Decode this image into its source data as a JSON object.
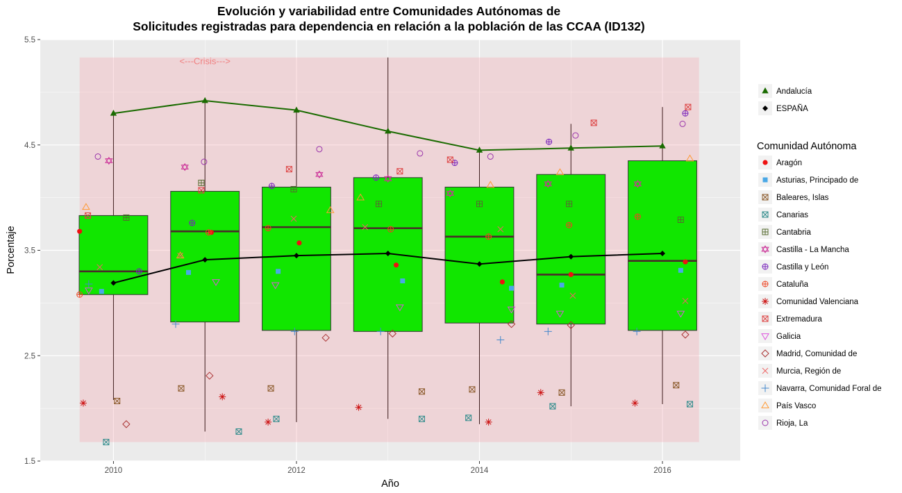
{
  "chart_data": {
    "type": "boxplot",
    "title_line1": "Evolución y variabilidad entre Comunidades Autónomas de",
    "title_line2": "Solicitudes registradas para dependencia en relación a la población de las CCAA (ID132)",
    "xlabel": "Año",
    "ylabel": "Porcentaje",
    "xlim": [
      2009.2,
      2016.85
    ],
    "ylim": [
      1.5,
      5.5
    ],
    "x_ticks": [
      2010,
      2012,
      2014,
      2016
    ],
    "x_tick_labels": [
      "2010",
      "2012",
      "2014",
      "2016"
    ],
    "y_ticks": [
      1.5,
      2.5,
      3.5,
      4.5,
      5.5
    ],
    "y_tick_labels": [
      "1.5",
      "2.5",
      "3.5",
      "4.5",
      "5.5"
    ],
    "annotation": {
      "text": "<---Crisis--->",
      "x": 2011,
      "y": 5.3
    },
    "crisis_band": {
      "x0": 2009.63,
      "x1": 2016.4,
      "y0": 1.68,
      "y1": 5.33,
      "color": "#f4a0a8"
    },
    "boxes": [
      {
        "x": 2010,
        "q1": 3.08,
        "median": 3.3,
        "q3": 3.83,
        "lower": 2.08,
        "upper": 4.8
      },
      {
        "x": 2011,
        "q1": 2.82,
        "median": 3.68,
        "q3": 4.06,
        "lower": 1.78,
        "upper": 4.92
      },
      {
        "x": 2012,
        "q1": 2.74,
        "median": 3.72,
        "q3": 4.1,
        "lower": 1.87,
        "upper": 4.83
      },
      {
        "x": 2013,
        "q1": 2.73,
        "median": 3.71,
        "q3": 4.19,
        "lower": 1.9,
        "upper": 5.33
      },
      {
        "x": 2014,
        "q1": 2.81,
        "median": 3.63,
        "q3": 4.1,
        "lower": 1.85,
        "upper": 4.45
      },
      {
        "x": 2015,
        "q1": 2.8,
        "median": 3.27,
        "q3": 4.22,
        "lower": 2.02,
        "upper": 4.7
      },
      {
        "x": 2016,
        "q1": 2.74,
        "median": 3.4,
        "q3": 4.35,
        "lower": 2.04,
        "upper": 4.86
      }
    ],
    "box_fill": "#11e600",
    "highlight_series": [
      {
        "name": "Andalucía",
        "color": "#1a6b00",
        "marker": "triangle",
        "x": [
          2010,
          2011,
          2012,
          2013,
          2014,
          2015,
          2016
        ],
        "y": [
          4.8,
          4.92,
          4.83,
          4.63,
          4.45,
          4.47,
          4.49
        ]
      },
      {
        "name": "ESPAÑA",
        "color": "#000000",
        "marker": "diamond",
        "x": [
          2010,
          2011,
          2012,
          2013,
          2014,
          2015,
          2016
        ],
        "y": [
          3.19,
          3.41,
          3.45,
          3.47,
          3.37,
          3.44,
          3.47
        ]
      }
    ],
    "legend_title": "Comunidad Autónoma",
    "series": [
      {
        "name": "Aragón",
        "color": "#ee1111",
        "marker": "dot",
        "x": [
          2009.63,
          2011.07,
          2012.03,
          2013.09,
          2014.25,
          2015.0,
          2016.25
        ],
        "y": [
          3.68,
          3.67,
          3.57,
          3.36,
          3.2,
          3.27,
          3.39
        ]
      },
      {
        "name": "Asturias, Principado de",
        "color": "#4aa8e6",
        "marker": "square",
        "x": [
          2009.87,
          2010.82,
          2011.8,
          2013.16,
          2014.35,
          2014.9,
          2016.2
        ],
        "y": [
          3.11,
          3.29,
          3.3,
          3.21,
          3.14,
          3.17,
          3.31
        ]
      },
      {
        "name": "Baleares, Islas",
        "color": "#8b5a2b",
        "marker": "square-x",
        "x": [
          2010.04,
          2010.74,
          2011.72,
          2013.37,
          2013.92,
          2014.9,
          2016.15
        ],
        "y": [
          2.07,
          2.19,
          2.19,
          2.16,
          2.18,
          2.15,
          2.22
        ]
      },
      {
        "name": "Canarias",
        "color": "#2e8b8b",
        "marker": "square-x2",
        "x": [
          2009.92,
          2011.37,
          2011.78,
          2013.37,
          2013.88,
          2014.8,
          2016.3
        ],
        "y": [
          1.68,
          1.78,
          1.9,
          1.9,
          1.91,
          2.02,
          2.04
        ]
      },
      {
        "name": "Cantabria",
        "color": "#556b2f",
        "marker": "square-plus",
        "x": [
          2010.14,
          2010.96,
          2011.97,
          2012.9,
          2014.0,
          2014.98,
          2016.2
        ],
        "y": [
          3.81,
          4.14,
          4.08,
          3.94,
          3.94,
          3.94,
          3.79
        ]
      },
      {
        "name": "Castilla - La Mancha",
        "color": "#cc3399",
        "marker": "star6",
        "x": [
          2009.95,
          2010.78,
          2012.25,
          2013.0,
          2013.68,
          2014.75,
          2015.73
        ],
        "y": [
          4.35,
          4.29,
          4.22,
          4.18,
          4.04,
          4.13,
          4.13
        ]
      },
      {
        "name": "Castilla y León",
        "color": "#7722bb",
        "marker": "circle-plus",
        "x": [
          2010.28,
          2010.86,
          2011.73,
          2012.87,
          2013.73,
          2014.76,
          2016.25
        ],
        "y": [
          3.3,
          3.76,
          4.11,
          4.19,
          4.33,
          4.53,
          4.8
        ]
      },
      {
        "name": "Cataluña",
        "color": "#ee4422",
        "marker": "circle-plus2",
        "x": [
          2009.63,
          2011.04,
          2011.69,
          2013.03,
          2014.1,
          2014.98,
          2015.73
        ],
        "y": [
          3.08,
          3.67,
          3.71,
          3.7,
          3.63,
          3.74,
          3.82
        ]
      },
      {
        "name": "Comunidad Valenciana",
        "color": "#cc1111",
        "marker": "asterisk",
        "x": [
          2009.67,
          2011.19,
          2011.69,
          2012.68,
          2014.1,
          2014.67,
          2015.7
        ],
        "y": [
          2.05,
          2.11,
          1.87,
          2.01,
          1.87,
          2.15,
          2.05
        ]
      },
      {
        "name": "Extremadura",
        "color": "#dd4444",
        "marker": "square-x3",
        "x": [
          2009.72,
          2010.96,
          2011.92,
          2013.13,
          2013.68,
          2015.25,
          2016.28
        ],
        "y": [
          3.83,
          4.07,
          4.27,
          4.25,
          4.36,
          4.71,
          4.86
        ]
      },
      {
        "name": "Galicia",
        "color": "#dd55dd",
        "marker": "triangle-down",
        "x": [
          2009.73,
          2011.12,
          2011.77,
          2013.13,
          2014.35,
          2014.88,
          2016.2
        ],
        "y": [
          3.12,
          3.2,
          3.17,
          2.96,
          2.94,
          2.9,
          2.9
        ]
      },
      {
        "name": "Madrid, Comunidad de",
        "color": "#aa3333",
        "marker": "diamond-open",
        "x": [
          2010.14,
          2011.05,
          2012.32,
          2013.05,
          2014.35,
          2015.0,
          2016.25
        ],
        "y": [
          1.85,
          2.31,
          2.67,
          2.71,
          2.8,
          2.79,
          2.7
        ]
      },
      {
        "name": "Murcia, Región de",
        "color": "#ee6666",
        "marker": "cross",
        "x": [
          2009.85,
          2010.73,
          2011.97,
          2012.75,
          2014.23,
          2015.02,
          2016.25
        ],
        "y": [
          3.34,
          3.45,
          3.8,
          3.72,
          3.7,
          3.07,
          3.02
        ]
      },
      {
        "name": "Navarra, Comunidad Foral de",
        "color": "#4488cc",
        "marker": "plus",
        "x": [
          2009.73,
          2010.68,
          2011.98,
          2012.92,
          2014.23,
          2014.75,
          2015.72
        ],
        "y": [
          3.18,
          2.8,
          2.73,
          2.73,
          2.65,
          2.73,
          2.73
        ]
      },
      {
        "name": "País Vasco",
        "color": "#ff9933",
        "marker": "triangle-open",
        "x": [
          2009.7,
          2010.73,
          2012.37,
          2012.7,
          2014.12,
          2014.88,
          2016.3
        ],
        "y": [
          3.91,
          3.45,
          3.88,
          4.0,
          4.12,
          4.24,
          4.37
        ]
      },
      {
        "name": "Rioja, La",
        "color": "#9933aa",
        "marker": "circle-open",
        "x": [
          2009.83,
          2010.99,
          2012.25,
          2013.35,
          2014.12,
          2015.05,
          2016.22
        ],
        "y": [
          4.39,
          4.34,
          4.46,
          4.42,
          4.39,
          4.59,
          4.7
        ]
      }
    ]
  }
}
